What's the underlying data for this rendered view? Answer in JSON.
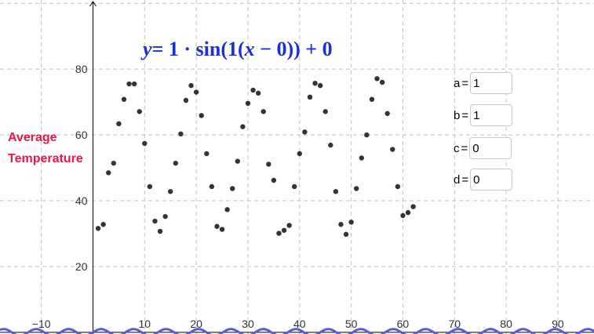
{
  "equation": {
    "y": "y",
    "eq": "= 1 · sin(1(",
    "x": "x",
    "rest": " − 0)) + 0"
  },
  "y_axis_title": {
    "line1": "Average",
    "line2": "Temperature"
  },
  "sliders": [
    {
      "name": "a",
      "value": "1"
    },
    {
      "name": "b",
      "value": "1"
    },
    {
      "name": "c",
      "value": "0"
    },
    {
      "name": "d",
      "value": "0"
    }
  ],
  "colors": {
    "equation": "#1f2fd6",
    "axis_title": "#e8174a",
    "points": "#333333",
    "curve": "#5b5bd6",
    "grid": "#c0c0c0"
  },
  "chart_data": {
    "type": "scatter",
    "xlabel": "",
    "ylabel": "Average Temperature",
    "xlim": [
      -18,
      97
    ],
    "ylim": [
      -0.5,
      101
    ],
    "grid": true,
    "x_ticks": [
      -10,
      10,
      20,
      30,
      40,
      50,
      60,
      70,
      80,
      90
    ],
    "y_ticks": [
      20,
      40,
      60,
      80
    ],
    "x_tick_labels": [
      "−10",
      "10",
      "20",
      "30",
      "40",
      "50",
      "60",
      "70",
      "80",
      "90"
    ],
    "y_tick_labels": [
      "20",
      "40",
      "60",
      "80"
    ],
    "series": [
      {
        "points": [
          [
            1,
            31.6
          ],
          [
            2,
            32.8
          ],
          [
            3,
            48.5
          ],
          [
            4,
            51.4
          ],
          [
            5,
            63.4
          ],
          [
            6,
            70.8
          ],
          [
            7,
            75.5
          ],
          [
            8,
            75.5
          ],
          [
            9,
            67.1
          ],
          [
            10,
            57.4
          ],
          [
            11,
            44.3
          ],
          [
            12,
            33.8
          ],
          [
            13,
            30.7
          ],
          [
            14,
            35.2
          ],
          [
            15,
            42.8
          ],
          [
            16,
            51.4
          ],
          [
            17,
            60.3
          ],
          [
            18,
            70.5
          ],
          [
            19,
            75.0
          ],
          [
            20,
            73.0
          ],
          [
            21,
            65.9
          ],
          [
            22,
            54.3
          ],
          [
            23,
            44.3
          ],
          [
            24,
            32.2
          ],
          [
            25,
            31.3
          ],
          [
            26,
            37.3
          ],
          [
            27,
            43.7
          ],
          [
            28,
            52.0
          ],
          [
            29,
            62.5
          ],
          [
            30,
            69.6
          ],
          [
            31,
            73.6
          ],
          [
            32,
            72.7
          ],
          [
            33,
            67.1
          ],
          [
            34,
            51.1
          ],
          [
            35,
            46.2
          ],
          [
            36,
            30.1
          ],
          [
            37,
            31.0
          ],
          [
            38,
            32.5
          ],
          [
            39,
            44.3
          ],
          [
            40,
            54.3
          ],
          [
            41,
            60.9
          ],
          [
            42,
            71.5
          ],
          [
            43,
            75.7
          ],
          [
            44,
            75.0
          ],
          [
            45,
            67.1
          ],
          [
            46,
            56.9
          ],
          [
            47,
            42.8
          ],
          [
            48,
            32.8
          ],
          [
            49,
            29.8
          ],
          [
            50,
            33.5
          ],
          [
            51,
            43.7
          ],
          [
            52,
            53.0
          ],
          [
            53,
            60.0
          ],
          [
            54,
            70.8
          ],
          [
            55,
            77.1
          ],
          [
            56,
            76.0
          ],
          [
            57,
            66.5
          ],
          [
            58,
            55.6
          ],
          [
            59,
            44.3
          ],
          [
            60,
            35.5
          ],
          [
            61,
            36.4
          ],
          [
            62,
            38.2
          ]
        ]
      }
    ],
    "curve": {
      "label": "y = 1 · sin(1(x − 0)) + 0",
      "a": 1,
      "b": 1,
      "c": 0,
      "d": 0
    }
  }
}
